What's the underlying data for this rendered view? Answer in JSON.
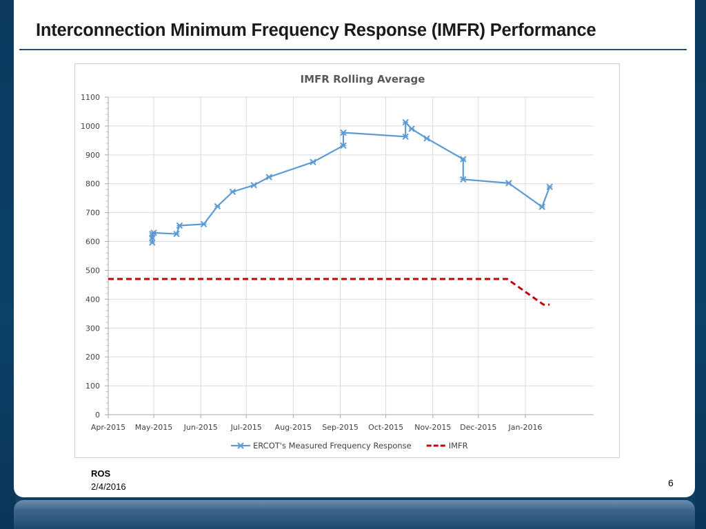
{
  "slide": {
    "title": "Interconnection Minimum Frequency Response (IMFR) Performance",
    "footer_org": "ROS",
    "footer_date": "2/4/2016",
    "page_number": "6"
  },
  "chart_data": {
    "type": "line",
    "title": "IMFR Rolling Average",
    "xlabel": "",
    "ylabel": "",
    "ylim": [
      0,
      1100
    ],
    "yticks": [
      0,
      100,
      200,
      300,
      400,
      500,
      600,
      700,
      800,
      900,
      1000,
      1100
    ],
    "xlim": [
      "2015-04-01",
      "2016-02-15"
    ],
    "xticks": [
      {
        "date": "2015-04-01",
        "label": "Apr-2015"
      },
      {
        "date": "2015-05-01",
        "label": "May-2015"
      },
      {
        "date": "2015-06-01",
        "label": "Jun-2015"
      },
      {
        "date": "2015-07-01",
        "label": "Jul-2015"
      },
      {
        "date": "2015-08-01",
        "label": "Aug-2015"
      },
      {
        "date": "2015-09-01",
        "label": "Sep-2015"
      },
      {
        "date": "2015-10-01",
        "label": "Oct-2015"
      },
      {
        "date": "2015-11-01",
        "label": "Nov-2015"
      },
      {
        "date": "2015-12-01",
        "label": "Dec-2015"
      },
      {
        "date": "2016-01-01",
        "label": "Jan-2016"
      }
    ],
    "grid": true,
    "legend_position": "bottom",
    "series": [
      {
        "name": "ERCOT's Measured Frequency Response",
        "color": "#5b9bd5",
        "style": "solid",
        "marker": "x",
        "points": [
          {
            "x": "2015-04-30",
            "y": 596
          },
          {
            "x": "2015-04-30",
            "y": 612
          },
          {
            "x": "2015-04-30",
            "y": 626
          },
          {
            "x": "2015-05-01",
            "y": 630
          },
          {
            "x": "2015-05-16",
            "y": 626
          },
          {
            "x": "2015-05-18",
            "y": 655
          },
          {
            "x": "2015-06-03",
            "y": 660
          },
          {
            "x": "2015-06-12",
            "y": 722
          },
          {
            "x": "2015-06-22",
            "y": 772
          },
          {
            "x": "2015-07-06",
            "y": 795
          },
          {
            "x": "2015-07-16",
            "y": 823
          },
          {
            "x": "2015-08-14",
            "y": 875
          },
          {
            "x": "2015-09-03",
            "y": 932
          },
          {
            "x": "2015-09-03",
            "y": 977
          },
          {
            "x": "2015-10-14",
            "y": 963
          },
          {
            "x": "2015-10-14",
            "y": 1013
          },
          {
            "x": "2015-10-18",
            "y": 990
          },
          {
            "x": "2015-10-28",
            "y": 957
          },
          {
            "x": "2015-11-21",
            "y": 885
          },
          {
            "x": "2015-11-21",
            "y": 815
          },
          {
            "x": "2015-12-21",
            "y": 802
          },
          {
            "x": "2016-01-12",
            "y": 720
          },
          {
            "x": "2016-01-17",
            "y": 789
          }
        ]
      },
      {
        "name": "IMFR",
        "color": "#c00000",
        "style": "dashed",
        "marker": "none",
        "points": [
          {
            "x": "2015-04-01",
            "y": 470
          },
          {
            "x": "2015-12-20",
            "y": 470
          },
          {
            "x": "2016-01-13",
            "y": 381
          },
          {
            "x": "2016-01-17",
            "y": 381
          }
        ]
      }
    ]
  }
}
